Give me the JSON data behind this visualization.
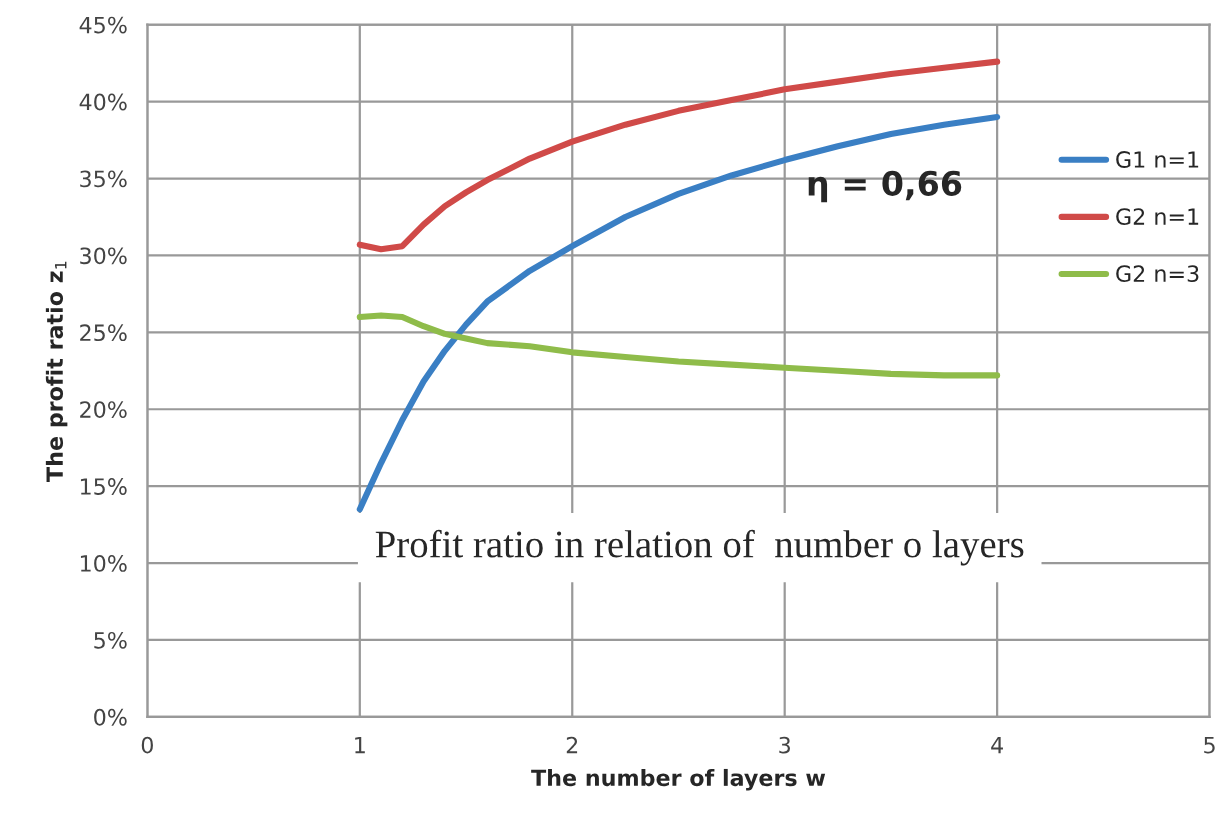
{
  "chart_data": {
    "type": "line",
    "xlabel": "The number of layers w",
    "ylabel": "The profit ratio z$_{1}$",
    "annotations": [
      "η = 0,66",
      "Profit ratio in relation of  number o layers"
    ],
    "xlim": [
      0,
      5
    ],
    "xticks": [
      0,
      1,
      2,
      3,
      4,
      5
    ],
    "ylim": [
      0,
      45
    ],
    "yticks": [
      {
        "value": 0,
        "label": "0%"
      },
      {
        "value": 5,
        "label": "5%"
      },
      {
        "value": 10,
        "label": "10%"
      },
      {
        "value": 15,
        "label": "15%"
      },
      {
        "value": 20,
        "label": "20%"
      },
      {
        "value": 25,
        "label": "25%"
      },
      {
        "value": 30,
        "label": "30%"
      },
      {
        "value": 35,
        "label": "35%"
      },
      {
        "value": 40,
        "label": "40%"
      },
      {
        "value": 45,
        "label": "45%"
      }
    ],
    "grid": true,
    "legend": "right",
    "marker": "none",
    "line_style": "solid",
    "x": [
      1,
      1.1,
      1.2,
      1.3,
      1.4,
      1.5,
      1.6,
      1.8,
      2,
      2.25,
      2.5,
      2.75,
      3,
      3.25,
      3.5,
      3.75,
      4
    ],
    "series": [
      {
        "name": "G1 n=1",
        "color": "#3a7fc4",
        "values": [
          13.5,
          16.5,
          19.3,
          21.8,
          23.8,
          25.5,
          27,
          29,
          30.6,
          32.5,
          34,
          35.2,
          36.2,
          37.1,
          37.9,
          38.5,
          39
        ]
      },
      {
        "name": "G2 n=1",
        "color": "#d04a48",
        "values": [
          30.7,
          30.4,
          30.6,
          32,
          33.2,
          34.1,
          34.9,
          36.3,
          37.4,
          38.5,
          39.4,
          40.1,
          40.8,
          41.3,
          41.8,
          42.2,
          42.6
        ]
      },
      {
        "name": "G2 n=3",
        "color": "#8fbc4a",
        "values": [
          26,
          26.1,
          26,
          25.4,
          24.9,
          24.6,
          24.3,
          24.1,
          23.7,
          23.4,
          23.1,
          22.9,
          22.7,
          22.5,
          22.3,
          22.2,
          22.2
        ]
      }
    ]
  }
}
